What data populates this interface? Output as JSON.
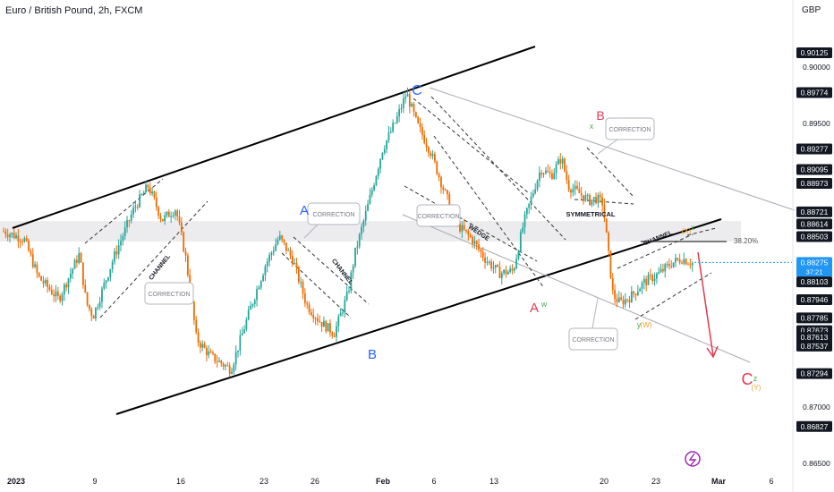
{
  "title": "Euro / British Pound, 2h, FXCM",
  "currency": "GBP",
  "colors": {
    "up": "#26a69a",
    "down": "#ef6c00",
    "blue": "#2962ff",
    "red": "#e53950",
    "green": "#4caf50",
    "orange": "#f0a020",
    "gray": "#787b86",
    "last": "#2196f3"
  },
  "chart_data": {
    "type": "candlestick",
    "title": "Euro / British Pound, 2h, FXCM",
    "ylim": [
      0.8647,
      0.9037
    ],
    "x_tick_labels": [
      "2023",
      "9",
      "16",
      "23",
      "26",
      "Feb",
      "6",
      "13",
      "20",
      "23",
      "Mar",
      "6"
    ],
    "y_tick_labels": [
      "0.90000",
      "0.89500",
      "0.87000",
      "0.86500"
    ],
    "price_badges": [
      {
        "label": "0.90125",
        "value": 0.90125
      },
      {
        "label": "0.89774",
        "value": 0.89774
      },
      {
        "label": "0.89277",
        "value": 0.89277
      },
      {
        "label": "0.89095",
        "value": 0.89095
      },
      {
        "label": "0.88973",
        "value": 0.88973
      },
      {
        "label": "0.88721",
        "value": 0.88721
      },
      {
        "label": "0.88614",
        "value": 0.88614
      },
      {
        "label": "0.88503",
        "value": 0.88503
      },
      {
        "label": "0.88275",
        "value": 0.88275,
        "sub": "37:21"
      },
      {
        "label": "0.88103",
        "value": 0.88103
      },
      {
        "label": "0.87946",
        "value": 0.87946
      },
      {
        "label": "0.87785",
        "value": 0.87785
      },
      {
        "label": "0.87673",
        "value": 0.87673
      },
      {
        "label": "0.87613",
        "value": 0.87613
      },
      {
        "label": "0.87537",
        "value": 0.87537
      },
      {
        "label": "0.87294",
        "value": 0.87294
      },
      {
        "label": "0.86827",
        "value": 0.86827
      }
    ],
    "price_path": [
      [
        0,
        0.8855
      ],
      [
        0.03,
        0.8848
      ],
      [
        0.05,
        0.8815
      ],
      [
        0.08,
        0.8795
      ],
      [
        0.11,
        0.8835
      ],
      [
        0.12,
        0.8792
      ],
      [
        0.13,
        0.878
      ],
      [
        0.16,
        0.8832
      ],
      [
        0.19,
        0.8876
      ],
      [
        0.21,
        0.8895
      ],
      [
        0.23,
        0.8865
      ],
      [
        0.25,
        0.8875
      ],
      [
        0.265,
        0.883
      ],
      [
        0.28,
        0.876
      ],
      [
        0.3,
        0.8745
      ],
      [
        0.33,
        0.8733
      ],
      [
        0.36,
        0.879
      ],
      [
        0.38,
        0.8825
      ],
      [
        0.4,
        0.885
      ],
      [
        0.42,
        0.883
      ],
      [
        0.44,
        0.879
      ],
      [
        0.46,
        0.8775
      ],
      [
        0.48,
        0.8765
      ],
      [
        0.5,
        0.88
      ],
      [
        0.51,
        0.8835
      ],
      [
        0.53,
        0.888
      ],
      [
        0.55,
        0.8927
      ],
      [
        0.57,
        0.8953
      ],
      [
        0.585,
        0.8977
      ],
      [
        0.6,
        0.895
      ],
      [
        0.62,
        0.8925
      ],
      [
        0.64,
        0.889
      ],
      [
        0.66,
        0.886
      ],
      [
        0.68,
        0.8848
      ],
      [
        0.7,
        0.883
      ],
      [
        0.72,
        0.8818
      ],
      [
        0.74,
        0.882
      ],
      [
        0.755,
        0.8862
      ],
      [
        0.77,
        0.8892
      ],
      [
        0.78,
        0.891
      ],
      [
        0.795,
        0.8904
      ],
      [
        0.81,
        0.892
      ],
      [
        0.82,
        0.8895
      ],
      [
        0.835,
        0.8889
      ],
      [
        0.85,
        0.8882
      ],
      [
        0.86,
        0.8884
      ],
      [
        0.87,
        0.888
      ],
      [
        0.885,
        0.8798
      ],
      [
        0.895,
        0.8792
      ],
      [
        0.91,
        0.8797
      ],
      [
        0.93,
        0.881
      ],
      [
        0.95,
        0.8817
      ],
      [
        0.97,
        0.8827
      ],
      [
        0.985,
        0.8831
      ],
      [
        1,
        0.8827
      ]
    ],
    "current_price": 0.88275,
    "fib_level": {
      "label": "38.20%",
      "value": 0.884
    },
    "highlight_band": [
      0.8846,
      0.8864
    ],
    "wave_labels": [
      {
        "text": "C",
        "color": "blue"
      },
      {
        "text": "A",
        "color": "blue"
      },
      {
        "text": "B",
        "color": "blue"
      },
      {
        "text": "B",
        "color": "red"
      },
      {
        "text": "x",
        "color": "green"
      },
      {
        "text": "A",
        "color": "red"
      },
      {
        "text": "w",
        "color": "green"
      },
      {
        "text": "C",
        "color": "red"
      },
      {
        "text": "z",
        "color": "green"
      },
      {
        "text": "(Y)",
        "color": "orange"
      },
      {
        "text": "y",
        "color": "green"
      },
      {
        "text": "(W)",
        "color": "orange"
      },
      {
        "text": "(X)",
        "color": "orange"
      },
      {
        "text": "x",
        "color": "green"
      }
    ],
    "annotations": [
      "CORRECTION",
      "CORRECTION",
      "CORRECTION",
      "CORRECTION",
      "CORRECTION",
      "CHANNEL",
      "CHANNEL",
      "CHANNEL",
      "WEDGE",
      "SYMMETRICAL"
    ]
  }
}
